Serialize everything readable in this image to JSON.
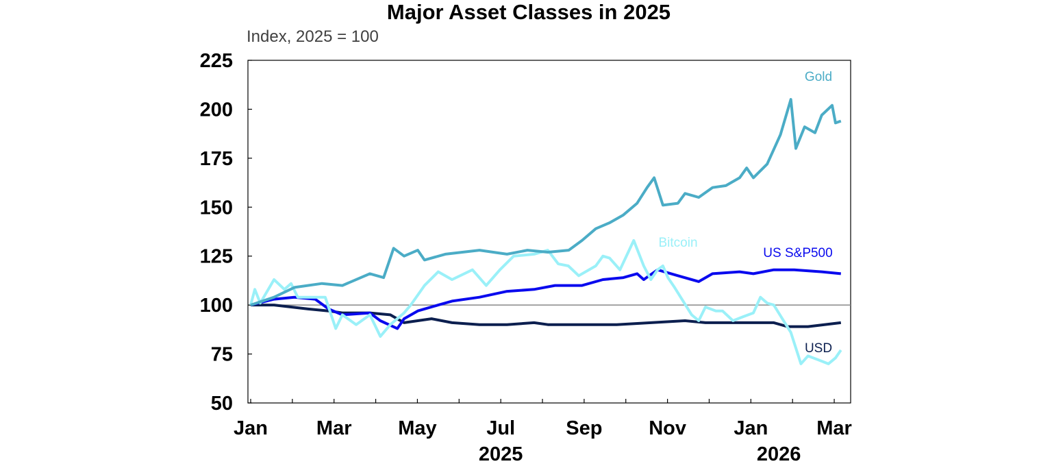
{
  "chart_data": {
    "type": "line",
    "title": "Major Asset Classes in 2025",
    "subtitle": "Index, 2025 = 100",
    "xlabel": "",
    "ylabel": "",
    "x_unit": "months since 1 Jan 2025",
    "xlim": [
      0,
      14.4
    ],
    "ylim": [
      50,
      225
    ],
    "yticks": [
      "50",
      "75",
      "100",
      "125",
      "150",
      "175",
      "200",
      "225"
    ],
    "ytick_values": [
      50,
      75,
      100,
      125,
      150,
      175,
      200,
      225
    ],
    "xticks": [
      {
        "label": "Jan",
        "month": 0
      },
      {
        "label": "Mar",
        "month": 2
      },
      {
        "label": "May",
        "month": 4
      },
      {
        "label": "Jul",
        "month": 6
      },
      {
        "label": "Sep",
        "month": 8
      },
      {
        "label": "Nov",
        "month": 10
      },
      {
        "label": "Jan",
        "month": 12
      },
      {
        "label": "Mar",
        "month": 14
      }
    ],
    "year_labels": [
      {
        "label": "2025",
        "month": 6
      },
      {
        "label": "2026",
        "month": 13
      }
    ],
    "reference_line": 100,
    "grid": false,
    "series": [
      {
        "name": "Gold",
        "color": "#4bacc6",
        "x": [
          0,
          0.56,
          1.05,
          1.71,
          2.2,
          2.86,
          3.19,
          3.43,
          3.68,
          4.01,
          4.17,
          4.67,
          5.49,
          6.15,
          6.64,
          7.13,
          7.63,
          7.95,
          8.28,
          8.61,
          8.94,
          9.27,
          9.51,
          9.68,
          9.89,
          10.25,
          10.42,
          10.75,
          11.08,
          11.4,
          11.73,
          11.9,
          12.06,
          12.39,
          12.71,
          12.96,
          13.08,
          13.29,
          13.54,
          13.7,
          13.95,
          14.03,
          14.16
        ],
        "y": [
          100,
          104,
          109,
          111,
          110,
          116,
          114,
          129,
          125,
          128,
          123,
          126,
          128,
          126,
          128,
          127,
          128,
          133,
          139,
          142,
          146,
          152,
          160,
          165,
          151,
          152,
          157,
          155,
          160,
          161,
          165,
          170,
          165,
          172,
          187,
          205,
          180,
          191,
          188,
          197,
          202,
          193,
          194
        ]
      },
      {
        "name": "Bitcoin",
        "color": "#9af0f8",
        "x": [
          0,
          0.1,
          0.23,
          0.56,
          0.81,
          0.97,
          1.13,
          1.55,
          1.79,
          2.04,
          2.2,
          2.53,
          2.86,
          3.11,
          3.35,
          3.68,
          3.84,
          4.17,
          4.5,
          4.83,
          5.32,
          5.65,
          5.98,
          6.31,
          6.8,
          7.13,
          7.38,
          7.62,
          7.87,
          8.28,
          8.45,
          8.61,
          8.86,
          9.19,
          9.43,
          9.6,
          9.76,
          9.89,
          10.01,
          10.17,
          10.58,
          10.75,
          10.91,
          11.16,
          11.32,
          11.57,
          11.81,
          12.06,
          12.23,
          12.39,
          12.55,
          12.96,
          13.2,
          13.37,
          13.62,
          13.86,
          14.03,
          14.16
        ],
        "y": [
          100,
          108,
          101,
          113,
          108,
          111,
          104,
          104,
          104,
          88,
          95,
          90,
          95,
          84,
          90,
          96,
          100,
          110,
          117,
          113,
          118,
          110,
          118,
          125,
          126,
          128,
          121,
          120,
          115,
          120,
          125,
          124,
          118,
          133,
          120,
          113,
          118,
          120,
          114,
          109,
          95,
          92,
          99,
          97,
          97,
          92,
          94,
          96,
          104,
          101,
          100,
          86,
          70,
          74,
          72,
          70,
          73,
          77
        ]
      },
      {
        "name": "US S&P500",
        "color": "#0a0aee",
        "x": [
          0,
          0.56,
          1.05,
          1.55,
          1.87,
          2.2,
          2.86,
          3.11,
          3.52,
          3.68,
          4.01,
          4.5,
          4.83,
          5.49,
          6.15,
          6.8,
          7.3,
          7.95,
          8.45,
          8.94,
          9.27,
          9.43,
          9.76,
          10.25,
          10.75,
          11.08,
          11.73,
          12.06,
          12.55,
          13.04,
          13.7,
          14.16
        ],
        "y": [
          100,
          103,
          104,
          103,
          98,
          95,
          96,
          92,
          88,
          93,
          97,
          100,
          102,
          104,
          107,
          108,
          110,
          110,
          113,
          114,
          116,
          113,
          118,
          115,
          112,
          116,
          117,
          116,
          118,
          118,
          117,
          116
        ]
      },
      {
        "name": "USD",
        "color": "#0c1f4f",
        "x": [
          0,
          0.56,
          1.38,
          1.87,
          2.2,
          2.86,
          3.35,
          3.68,
          4.01,
          4.34,
          4.83,
          5.49,
          6.15,
          6.8,
          7.13,
          7.95,
          8.78,
          9.6,
          10.42,
          10.91,
          11.73,
          12.55,
          12.88,
          13.37,
          14.16
        ],
        "y": [
          100,
          100,
          98,
          97,
          96,
          96,
          95,
          91,
          92,
          93,
          91,
          90,
          90,
          91,
          90,
          90,
          90,
          91,
          92,
          91,
          91,
          91,
          89,
          89,
          91
        ]
      }
    ]
  }
}
